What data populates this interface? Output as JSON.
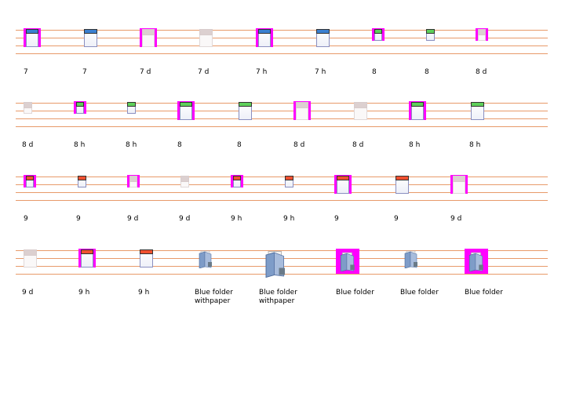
{
  "colors": {
    "blue": "#3a7fd0",
    "green": "#5ed05a",
    "red": "#f05030",
    "disabled": "#dcd0d0",
    "magenta": "#ff00ff",
    "line": "#e89a6a"
  },
  "rows": [
    {
      "items": [
        {
          "label": "7",
          "style": "mag",
          "color": "blue"
        },
        {
          "label": "7",
          "style": "plain",
          "color": "blue"
        },
        {
          "label": "7 d",
          "style": "mag",
          "color": "disabled"
        },
        {
          "label": "7 d",
          "style": "plain",
          "color": "disabled"
        },
        {
          "label": "7 h",
          "style": "mag",
          "color": "blue"
        },
        {
          "label": "7 h",
          "style": "plain",
          "color": "blue"
        },
        {
          "label": "8",
          "style": "mag-small",
          "color": "green"
        },
        {
          "label": "8",
          "style": "plain-small",
          "color": "green"
        },
        {
          "label": "8 d",
          "style": "mag-small",
          "color": "disabled"
        }
      ]
    },
    {
      "items": [
        {
          "label": "8 d",
          "style": "plain-small",
          "color": "disabled"
        },
        {
          "label": "8 h",
          "style": "mag-small",
          "color": "green"
        },
        {
          "label": "8 h",
          "style": "plain-small",
          "color": "green"
        },
        {
          "label": "8",
          "style": "mag",
          "color": "green"
        },
        {
          "label": "8",
          "style": "plain",
          "color": "green"
        },
        {
          "label": "8 d",
          "style": "mag",
          "color": "disabled"
        },
        {
          "label": "8 d",
          "style": "plain",
          "color": "disabled"
        },
        {
          "label": "8 h",
          "style": "mag",
          "color": "green"
        },
        {
          "label": "8 h",
          "style": "plain",
          "color": "green"
        }
      ]
    },
    {
      "items": [
        {
          "label": "9",
          "style": "mag-small",
          "color": "red"
        },
        {
          "label": "9",
          "style": "plain-small",
          "color": "red"
        },
        {
          "label": "9 d",
          "style": "mag-small",
          "color": "disabled"
        },
        {
          "label": "9 d",
          "style": "plain-small",
          "color": "disabled"
        },
        {
          "label": "9 h",
          "style": "mag-small",
          "color": "red"
        },
        {
          "label": "9 h",
          "style": "plain-small",
          "color": "red"
        },
        {
          "label": "9",
          "style": "mag",
          "color": "red"
        },
        {
          "label": "9",
          "style": "plain",
          "color": "red"
        },
        {
          "label": "9 d",
          "style": "mag",
          "color": "disabled"
        }
      ]
    },
    {
      "items": [
        {
          "label": "9 d",
          "style": "plain",
          "color": "disabled"
        },
        {
          "label": "9 h",
          "style": "mag",
          "color": "red"
        },
        {
          "label": "9 h",
          "style": "plain",
          "color": "red"
        },
        {
          "label": "Blue folder withpaper",
          "style": "folder-small",
          "icon": "blue-folder-with-paper-icon"
        },
        {
          "label": "Blue folder withpaper",
          "style": "folder-large",
          "icon": "blue-folder-with-paper-icon"
        },
        {
          "label": "Blue folder",
          "style": "folder-mag",
          "icon": "blue-folder-icon"
        },
        {
          "label": "Blue folder",
          "style": "folder-small",
          "icon": "blue-folder-icon"
        },
        {
          "label": "Blue folder",
          "style": "folder-mag",
          "icon": "blue-folder-icon"
        }
      ]
    }
  ]
}
